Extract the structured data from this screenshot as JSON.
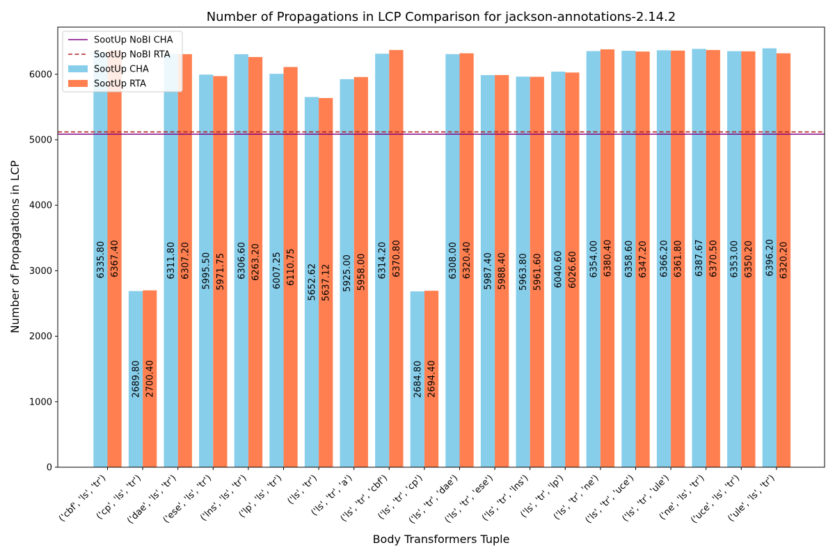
{
  "chart_data": {
    "type": "bar",
    "title": "Number of Propagations in LCP Comparison for jackson-annotations-2.14.2",
    "xlabel": "Body Transformers Tuple",
    "ylabel": "Number of Propagations in LCP",
    "ylim": [
      0,
      6720
    ],
    "yticks": [
      0,
      1000,
      2000,
      3000,
      4000,
      5000,
      6000
    ],
    "grid": false,
    "legend_position": "top-left",
    "categories": [
      "('cbf', 'ls', 'tr')",
      "('cp', 'ls', 'tr')",
      "('dae', 'ls', 'tr')",
      "('ese', 'ls', 'tr')",
      "('lns', 'ls', 'tr')",
      "('lp', 'ls', 'tr')",
      "('ls', 'tr')",
      "('ls', 'tr', 'a')",
      "('ls', 'tr', 'cbf')",
      "('ls', 'tr', 'cp')",
      "('ls', 'tr', 'dae')",
      "('ls', 'tr', 'ese')",
      "('ls', 'tr', 'lns')",
      "('ls', 'tr', 'lp')",
      "('ls', 'tr', 'ne')",
      "('ls', 'tr', 'uce')",
      "('ls', 'tr', 'ule')",
      "('ne', 'ls', 'tr')",
      "('uce', 'ls', 'tr')",
      "('ule', 'ls', 'tr')"
    ],
    "series": [
      {
        "name": "SootUp CHA",
        "color": "#87CEEB",
        "values": [
          6335.8,
          2689.8,
          6311.8,
          5995.5,
          6306.6,
          6007.25,
          5652.62,
          5925.0,
          6314.2,
          2684.8,
          6308.0,
          5987.4,
          5963.8,
          6040.6,
          6354.0,
          6358.6,
          6366.2,
          6387.67,
          6353.0,
          6396.2
        ],
        "labels": [
          "6335.80",
          "2689.80",
          "6311.80",
          "5995.50",
          "6306.60",
          "6007.25",
          "5652.62",
          "5925.00",
          "6314.20",
          "2684.80",
          "6308.00",
          "5987.40",
          "5963.80",
          "6040.60",
          "6354.00",
          "6358.60",
          "6366.20",
          "6387.67",
          "6353.00",
          "6396.20"
        ]
      },
      {
        "name": "SootUp RTA",
        "color": "#FF7F50",
        "values": [
          6367.4,
          2700.4,
          6307.2,
          5971.75,
          6263.2,
          6110.75,
          5637.12,
          5958.0,
          6370.8,
          2694.4,
          6320.4,
          5988.4,
          5961.6,
          6026.6,
          6380.4,
          6347.2,
          6361.8,
          6370.5,
          6350.2,
          6320.2
        ],
        "labels": [
          "6367.40",
          "2700.40",
          "6307.20",
          "5971.75",
          "6263.20",
          "6110.75",
          "5637.12",
          "5958.00",
          "6370.80",
          "2694.40",
          "6320.40",
          "5988.40",
          "5961.60",
          "6026.60",
          "6380.40",
          "6347.20",
          "6361.80",
          "6370.50",
          "6350.20",
          "6320.20"
        ]
      }
    ],
    "reference_lines": [
      {
        "name": "SootUp NoBI CHA",
        "value": 5085,
        "color": "#800080",
        "style": "solid"
      },
      {
        "name": "SootUp NoBI RTA",
        "value": 5120,
        "color": "#B22222",
        "style": "dashed"
      }
    ]
  }
}
